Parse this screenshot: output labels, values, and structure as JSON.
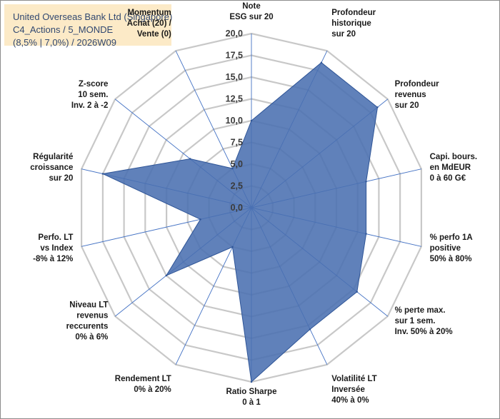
{
  "info": {
    "line1": "United Overseas Bank Ltd (Singapore)",
    "line2": "C4_Actions / 5_MONDE",
    "line3": "(8,5% | 7,0%) / 2026W09"
  },
  "chart_data": {
    "type": "radar",
    "title": "United Overseas Bank Ltd (Singapore)",
    "rlim": [
      0,
      20
    ],
    "tick_values": [
      0,
      2.5,
      5,
      7.5,
      10,
      12.5,
      15,
      17.5,
      20
    ],
    "tick_labels": [
      "0,0",
      "2,5",
      "5,0",
      "7,5",
      "10,0",
      "12,5",
      "15,0",
      "17,5",
      "20,0"
    ],
    "axes": [
      {
        "lines": [
          "Note",
          "ESG sur 20"
        ],
        "value": 10
      },
      {
        "lines": [
          "Profondeur",
          "historique",
          "sur 20"
        ],
        "value": 18.5
      },
      {
        "lines": [
          "Profondeur",
          "revenus",
          "sur 20"
        ],
        "value": 18.5
      },
      {
        "lines": [
          "Capi. bours.",
          "en MdEUR",
          "0 à 60 G€"
        ],
        "value": 13.5
      },
      {
        "lines": [
          "% perfo 1A",
          "positive",
          "50% à 80%"
        ],
        "value": 13.5
      },
      {
        "lines": [
          "% perte max.",
          "sur 1 sem.",
          "Inv. 50% à 20%"
        ],
        "value": 15.5
      },
      {
        "lines": [
          "Volatilité LT",
          "Inversée",
          "40% à 0%"
        ],
        "value": 15.5
      },
      {
        "lines": [
          "Ratio Sharpe",
          "0 à 1"
        ],
        "value": 20
      },
      {
        "lines": [
          "Rendement LT",
          "0% à 20%"
        ],
        "value": 5
      },
      {
        "lines": [
          "Niveau LT",
          "revenus",
          "reccurents",
          "0% à 6%"
        ],
        "value": 12.5
      },
      {
        "lines": [
          "Perfo. LT",
          "vs Index",
          "-8% à 12%"
        ],
        "value": 6
      },
      {
        "lines": [
          "Régularité",
          "croissance",
          "sur 20"
        ],
        "value": 17.5
      },
      {
        "lines": [
          "Z-score",
          "10 sem.",
          "Inv. 2 à -2"
        ],
        "value": 9
      },
      {
        "lines": [
          "Momentum",
          "Achat (20) /",
          "Vente (0)"
        ],
        "value": 5
      }
    ],
    "momentum_highlight": [
      "Momentum",
      "Achat (20)"
    ],
    "colors": {
      "fill": "#4a6fb0",
      "stroke": "#2f5597",
      "grid": "#c8c8c8",
      "spoke": "#4472c4",
      "highlight_text": "#c9a227"
    }
  }
}
